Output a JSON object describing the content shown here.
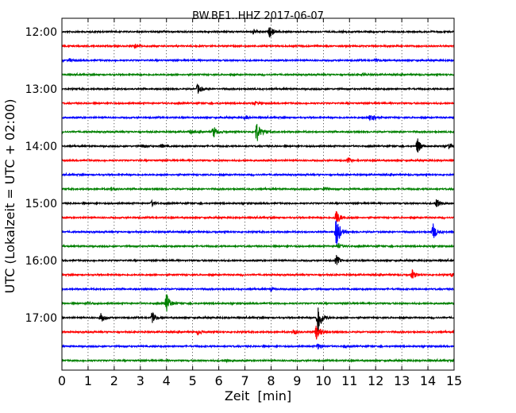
{
  "chart_data": {
    "type": "line",
    "title": "BW.BE1..HHZ 2017-06-07",
    "xlabel": "Zeit  [min]",
    "ylabel": "UTC (Lokalzeit = UTC + 02:00)",
    "xlim": [
      0,
      15
    ],
    "x_ticks": [
      "0",
      "1",
      "2",
      "3",
      "4",
      "5",
      "6",
      "7",
      "8",
      "9",
      "10",
      "11",
      "12",
      "13",
      "14",
      "15"
    ],
    "y_ticks": [
      "12:00",
      "13:00",
      "14:00",
      "15:00",
      "16:00",
      "17:00"
    ],
    "grid": "x dotted",
    "trace_interval_minutes": 15,
    "colors": [
      "#000000",
      "#ff0000",
      "#0000ff",
      "#008000"
    ],
    "traces": [
      {
        "start": "12:00",
        "events": [
          {
            "t": 7.3,
            "amp": 0.4
          },
          {
            "t": 7.95,
            "amp": 0.9
          }
        ]
      },
      {
        "start": "12:15",
        "events": [
          {
            "t": 2.8,
            "amp": 0.3
          }
        ]
      },
      {
        "start": "12:30",
        "events": [
          {
            "t": 0.3,
            "amp": 0.25
          },
          {
            "t": 12.0,
            "amp": 0.2
          }
        ]
      },
      {
        "start": "12:45",
        "events": [
          {
            "t": 11.5,
            "amp": 0.2
          }
        ]
      },
      {
        "start": "13:00",
        "events": [
          {
            "t": 5.2,
            "amp": 0.8
          }
        ]
      },
      {
        "start": "13:15",
        "events": [
          {
            "t": 7.4,
            "amp": 0.25
          }
        ]
      },
      {
        "start": "13:30",
        "events": [
          {
            "t": 7.0,
            "amp": 0.3
          },
          {
            "t": 11.8,
            "amp": 1.0
          }
        ]
      },
      {
        "start": "13:45",
        "events": [
          {
            "t": 5.8,
            "amp": 1.0
          },
          {
            "t": 7.45,
            "amp": 1.8
          },
          {
            "t": 4.9,
            "amp": 0.3
          }
        ]
      },
      {
        "start": "14:00",
        "events": [
          {
            "t": 3.1,
            "amp": 0.3
          },
          {
            "t": 3.8,
            "amp": 0.3
          },
          {
            "t": 13.6,
            "amp": 1.3
          },
          {
            "t": 14.8,
            "amp": 0.4
          }
        ]
      },
      {
        "start": "14:15",
        "events": [
          {
            "t": 10.95,
            "amp": 0.4
          }
        ]
      },
      {
        "start": "14:30",
        "events": []
      },
      {
        "start": "14:45",
        "events": [
          {
            "t": 1.9,
            "amp": 0.35
          },
          {
            "t": 10.05,
            "amp": 0.35
          }
        ]
      },
      {
        "start": "15:00",
        "events": [
          {
            "t": 3.45,
            "amp": 0.4
          },
          {
            "t": 14.35,
            "amp": 0.9
          }
        ]
      },
      {
        "start": "15:15",
        "events": [
          {
            "t": 10.5,
            "amp": 1.3
          }
        ]
      },
      {
        "start": "15:30",
        "events": [
          {
            "t": 10.5,
            "amp": 2.8
          },
          {
            "t": 14.2,
            "amp": 1.3
          }
        ]
      },
      {
        "start": "15:45",
        "events": [
          {
            "t": 10.55,
            "amp": 0.4
          }
        ]
      },
      {
        "start": "16:00",
        "events": [
          {
            "t": 10.5,
            "amp": 0.8
          }
        ]
      },
      {
        "start": "16:15",
        "events": [
          {
            "t": 13.4,
            "amp": 0.8
          },
          {
            "t": 14.9,
            "amp": 0.3
          }
        ]
      },
      {
        "start": "16:30",
        "events": [
          {
            "t": 8.0,
            "amp": 0.3
          }
        ]
      },
      {
        "start": "16:45",
        "events": [
          {
            "t": 4.0,
            "amp": 1.7
          },
          {
            "t": 1.0,
            "amp": 0.2
          }
        ]
      },
      {
        "start": "17:00",
        "events": [
          {
            "t": 1.5,
            "amp": 0.9
          },
          {
            "t": 3.45,
            "amp": 0.9
          },
          {
            "t": 9.8,
            "amp": 2.8
          }
        ]
      },
      {
        "start": "17:15",
        "events": [
          {
            "t": 5.2,
            "amp": 0.4
          },
          {
            "t": 8.85,
            "amp": 0.5
          },
          {
            "t": 9.75,
            "amp": 1.5
          }
        ]
      },
      {
        "start": "17:30",
        "events": [
          {
            "t": 9.8,
            "amp": 0.4
          },
          {
            "t": 10.8,
            "amp": 0.2
          }
        ]
      },
      {
        "start": "17:45",
        "events": [
          {
            "t": 6.3,
            "amp": 0.3
          }
        ]
      }
    ]
  }
}
